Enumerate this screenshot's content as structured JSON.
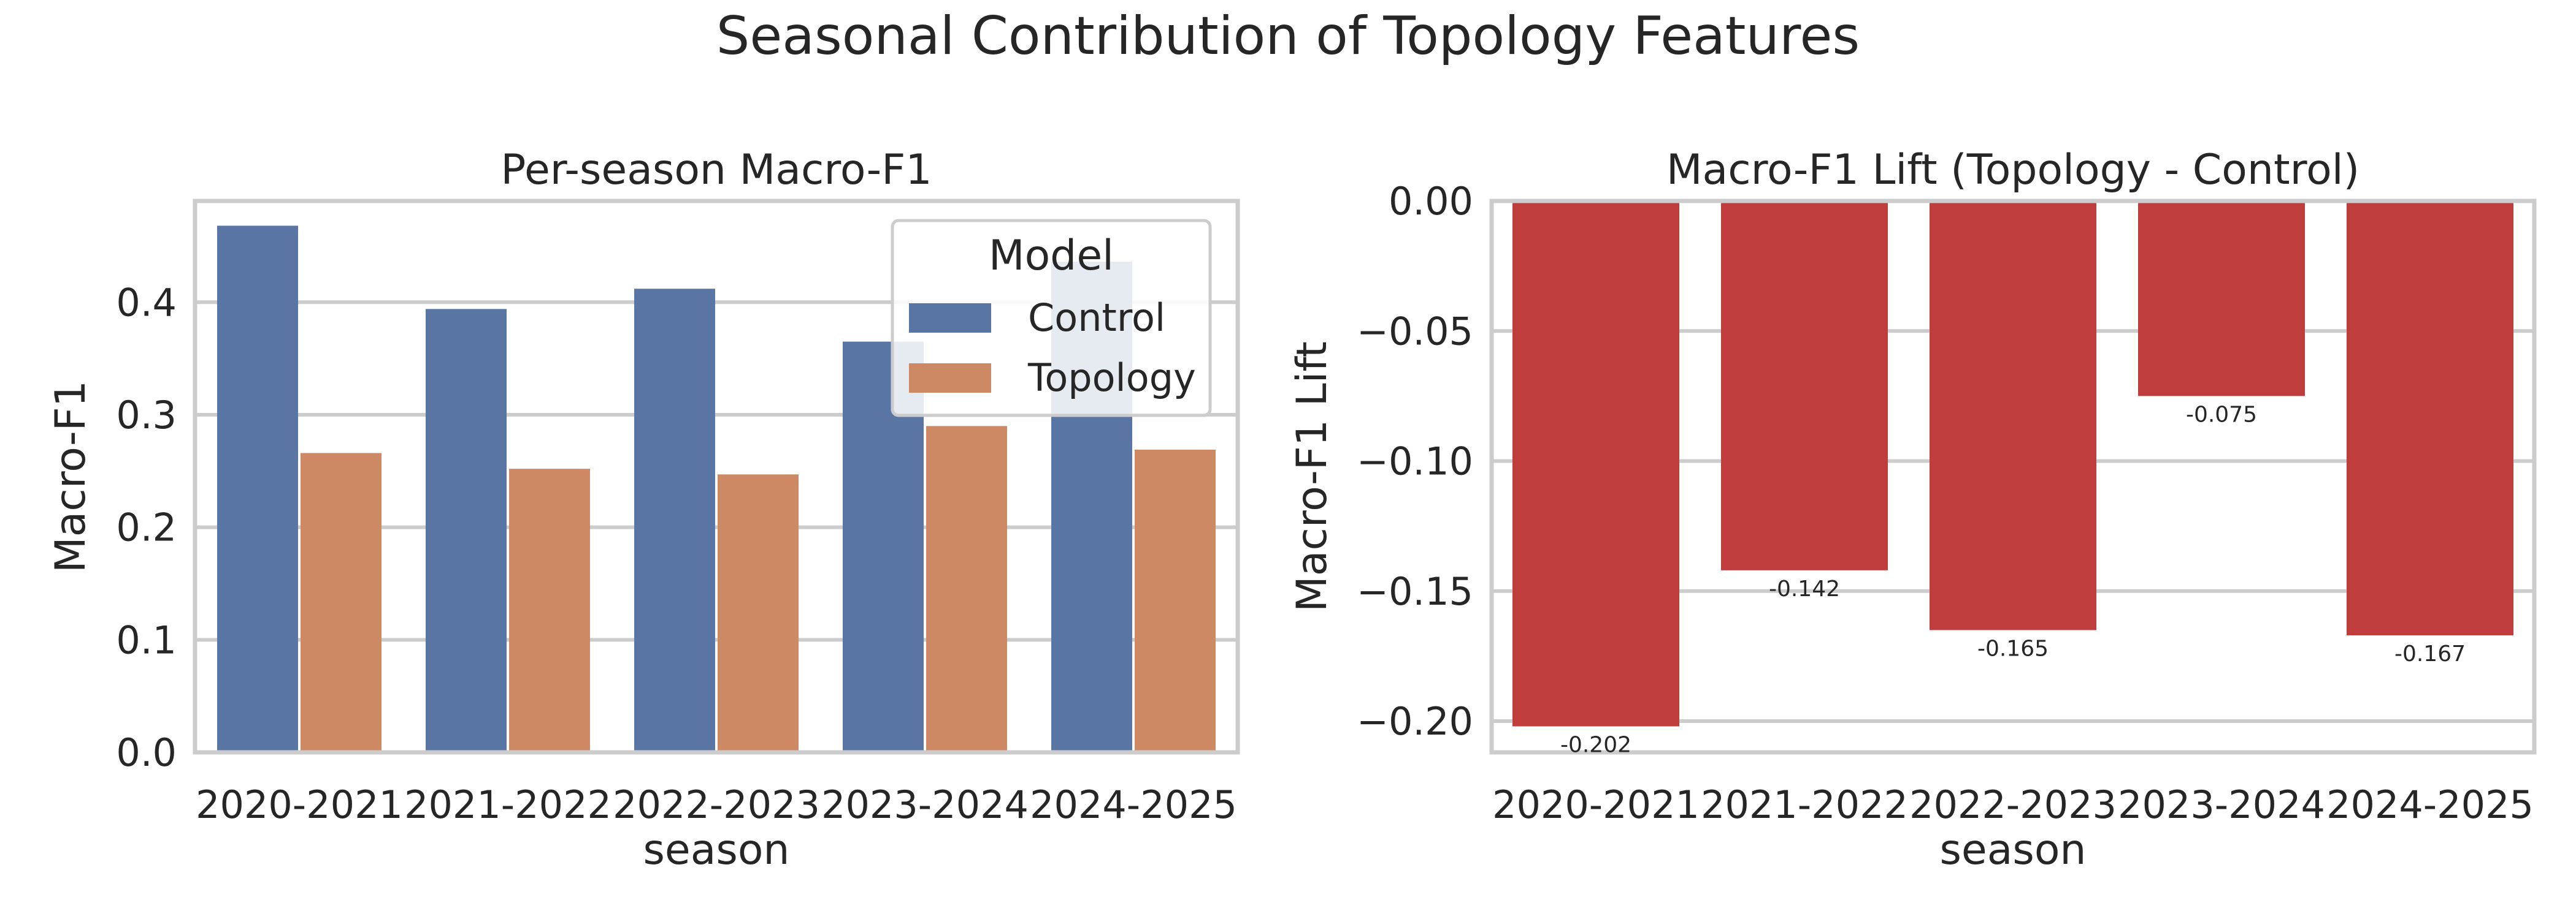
{
  "figure": {
    "title": "Seasonal Contribution of Topology Features"
  },
  "chart_data": [
    {
      "type": "bar",
      "title": "Per-season Macro-F1",
      "xlabel": "season",
      "ylabel": "Macro-F1",
      "categories": [
        "2020-2021",
        "2021-2022",
        "2022-2023",
        "2023-2024",
        "2024-2025"
      ],
      "ylim": [
        0,
        0.49
      ],
      "yticks": [
        0.0,
        0.1,
        0.2,
        0.3,
        0.4
      ],
      "ytick_labels": [
        "0.0",
        "0.1",
        "0.2",
        "0.3",
        "0.4"
      ],
      "grid": true,
      "legend": {
        "title": "Model",
        "placement": "top-right"
      },
      "series": [
        {
          "name": "Control",
          "color": "#5875a4",
          "values": [
            0.468,
            0.394,
            0.412,
            0.365,
            0.436
          ]
        },
        {
          "name": "Topology",
          "color": "#cc8963",
          "values": [
            0.266,
            0.252,
            0.247,
            0.29,
            0.269
          ]
        }
      ]
    },
    {
      "type": "bar",
      "title": "Macro-F1 Lift (Topology - Control)",
      "xlabel": "season",
      "ylabel": "Macro-F1 Lift",
      "categories": [
        "2020-2021",
        "2021-2022",
        "2022-2023",
        "2023-2024",
        "2024-2025"
      ],
      "ylim": [
        -0.212,
        0.0
      ],
      "yticks": [
        0.0,
        -0.05,
        -0.1,
        -0.15,
        -0.2
      ],
      "ytick_labels": [
        "0.00",
        "−0.05",
        "−0.10",
        "−0.15",
        "−0.20"
      ],
      "grid": true,
      "color": "#c03d3e",
      "values": [
        -0.202,
        -0.142,
        -0.165,
        -0.075,
        -0.167
      ],
      "data_labels": [
        "-0.202",
        "-0.142",
        "-0.165",
        "-0.075",
        "-0.167"
      ]
    }
  ]
}
